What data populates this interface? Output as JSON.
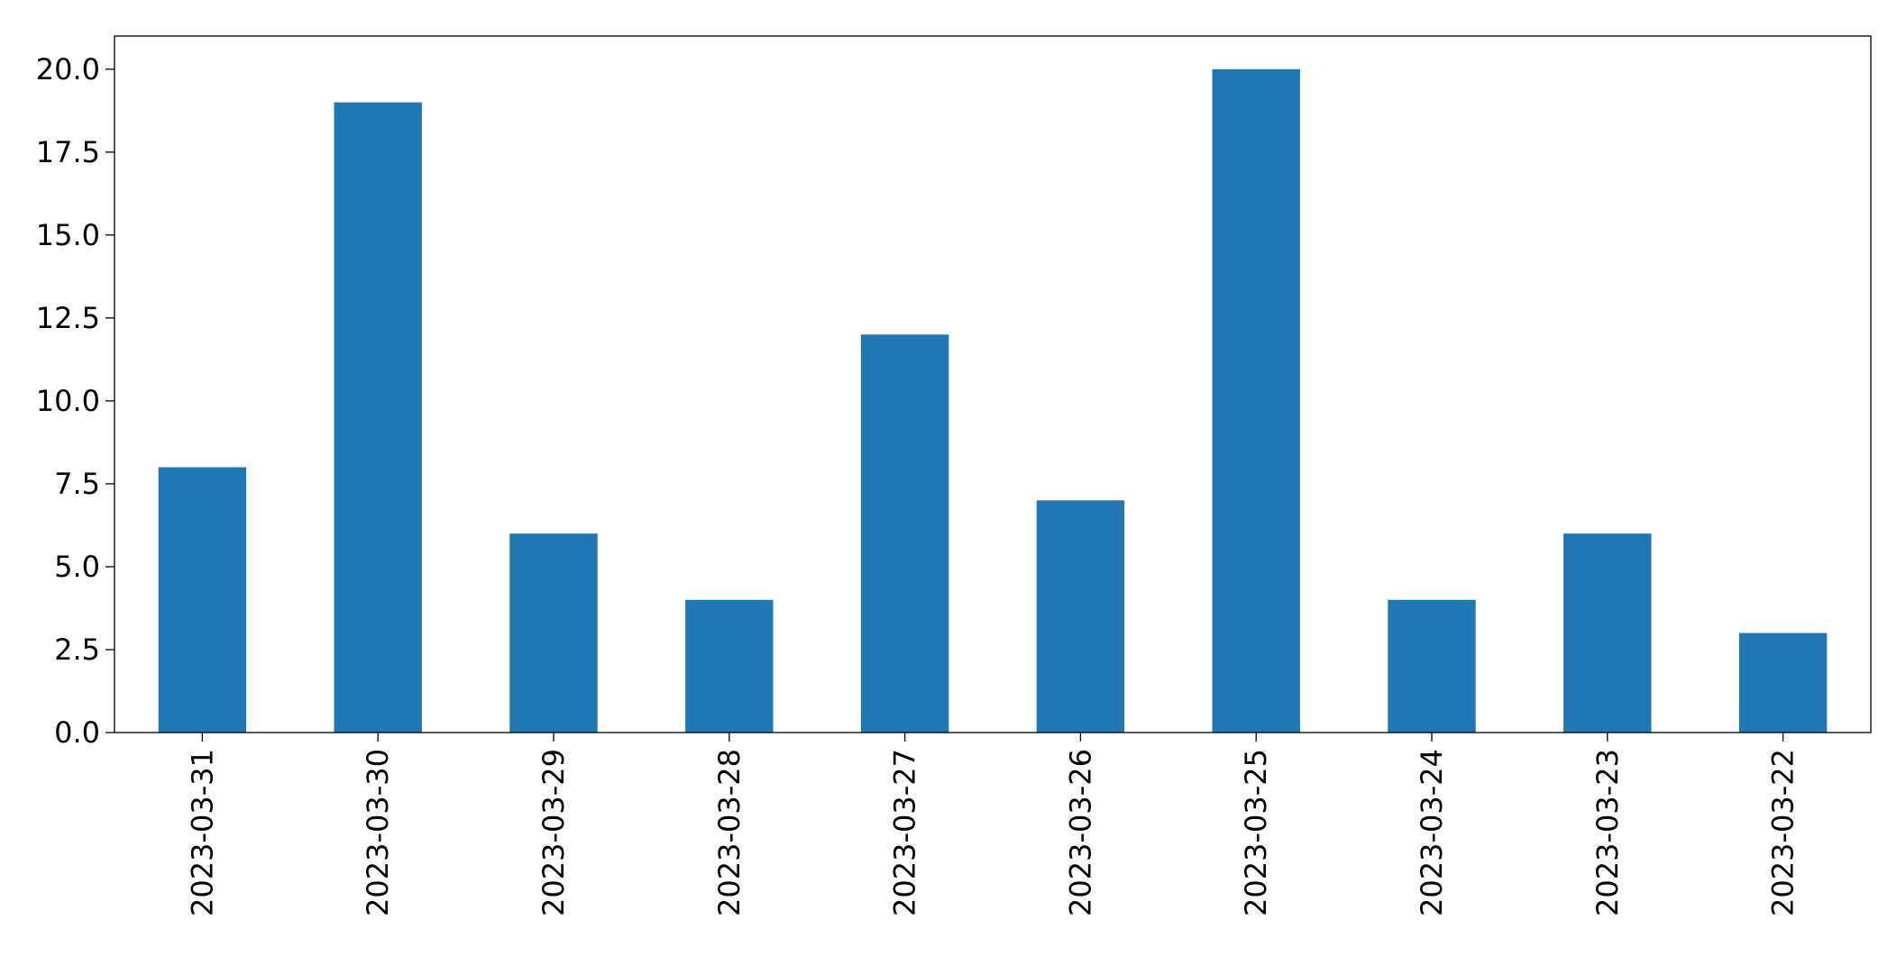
{
  "chart_data": {
    "type": "bar",
    "title": "",
    "xlabel": "",
    "ylabel": "",
    "categories": [
      "2023-03-31",
      "2023-03-30",
      "2023-03-29",
      "2023-03-28",
      "2023-03-27",
      "2023-03-26",
      "2023-03-25",
      "2023-03-24",
      "2023-03-23",
      "2023-03-22"
    ],
    "values": [
      8,
      19,
      6,
      4,
      12,
      7,
      20,
      4,
      6,
      3
    ],
    "ylim": [
      0,
      21
    ],
    "yticks": [
      {
        "value": 0,
        "label": "0.0"
      },
      {
        "value": 2.5,
        "label": "2.5"
      },
      {
        "value": 5,
        "label": "5.0"
      },
      {
        "value": 7.5,
        "label": "7.5"
      },
      {
        "value": 10,
        "label": "10.0"
      },
      {
        "value": 12.5,
        "label": "12.5"
      },
      {
        "value": 15,
        "label": "15.0"
      },
      {
        "value": 17.5,
        "label": "17.5"
      },
      {
        "value": 20,
        "label": "20.0"
      }
    ],
    "grid": false,
    "legend": "none",
    "bar_color": "#1f77b4"
  }
}
